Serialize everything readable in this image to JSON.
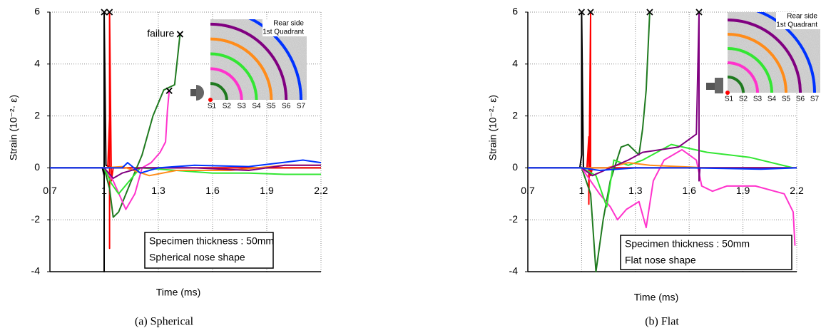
{
  "chart_data": [
    {
      "type": "line",
      "xlabel": "Time (ms)",
      "ylabel": "Strain (10⁻²· ε)",
      "caption": "(a) Spherical",
      "xlim": [
        0.7,
        2.2
      ],
      "xticks": [
        0.7,
        1,
        1.3,
        1.6,
        1.9,
        2.2
      ],
      "ylim": [
        -4,
        6
      ],
      "yticks": [
        -4,
        -2,
        0,
        2,
        4,
        6
      ],
      "grid": true,
      "inset_title": [
        "Rear side",
        "1st Quadrant"
      ],
      "note": [
        "Specimen thickness : 50mm",
        "Spherical nose shape"
      ],
      "annotation": "failure",
      "markers": [
        {
          "x": 1.0,
          "y": 6
        },
        {
          "x": 1.03,
          "y": 6
        },
        {
          "x": 1.42,
          "y": 5.15
        },
        {
          "x": 1.36,
          "y": 2.97
        }
      ],
      "series": [
        {
          "color": "#000000",
          "x": [
            0.7,
            0.99,
            1.0,
            1.0,
            1.0,
            1.01,
            1.05,
            2.2
          ],
          "values": [
            0,
            0,
            -0.3,
            -4,
            6,
            0.1,
            0,
            0
          ]
        },
        {
          "name": "S1",
          "color": "#ff0000",
          "x": [
            0.7,
            1.02,
            1.03,
            1.03,
            1.03,
            1.04,
            1.05,
            2.2
          ],
          "values": [
            0,
            0,
            1.9,
            -3.1,
            6,
            -0.5,
            0,
            0
          ]
        },
        {
          "name": "S2",
          "color": "#1f7a1f",
          "x": [
            0.7,
            1.0,
            1.03,
            1.05,
            1.08,
            1.15,
            1.21,
            1.27,
            1.33,
            1.39,
            1.41,
            1.42
          ],
          "values": [
            0,
            0,
            -0.8,
            -1.9,
            -1.7,
            -0.5,
            0.5,
            2.0,
            3.0,
            3.2,
            4.5,
            5.15
          ]
        },
        {
          "name": "S3",
          "color": "#ff33cc",
          "x": [
            0.7,
            1.0,
            1.05,
            1.12,
            1.17,
            1.21,
            1.26,
            1.31,
            1.34,
            1.35,
            1.36
          ],
          "values": [
            0,
            0,
            -0.5,
            -1.6,
            -1.0,
            0,
            0.2,
            0.6,
            1.0,
            2.2,
            2.97
          ]
        },
        {
          "name": "S4",
          "color": "#33e633",
          "x": [
            0.7,
            1.0,
            1.04,
            1.08,
            1.14,
            1.2,
            1.4,
            1.6,
            1.8,
            2.0,
            2.2
          ],
          "values": [
            0,
            0,
            -0.6,
            -1.0,
            -0.5,
            0,
            -0.1,
            -0.2,
            -0.2,
            -0.25,
            -0.25
          ]
        },
        {
          "name": "S5",
          "color": "#ff8c1a",
          "x": [
            0.7,
            1.0,
            1.1,
            1.25,
            1.4,
            1.7,
            2.0,
            2.2
          ],
          "values": [
            0,
            0,
            0.05,
            -0.3,
            -0.1,
            -0.1,
            0.1,
            0.1
          ]
        },
        {
          "name": "S6",
          "color": "#800080",
          "x": [
            0.7,
            1.0,
            1.05,
            1.1,
            1.2,
            1.5,
            1.8,
            2.0,
            2.2
          ],
          "values": [
            0,
            0,
            -0.4,
            -0.2,
            0,
            0,
            -0.1,
            0.1,
            0.1
          ]
        },
        {
          "name": "S7",
          "color": "#0033ff",
          "x": [
            0.7,
            1.0,
            1.1,
            1.13,
            1.2,
            1.3,
            1.5,
            1.8,
            2.1,
            2.2
          ],
          "values": [
            0,
            0,
            0,
            0.2,
            -0.2,
            0,
            0.1,
            0.05,
            0.3,
            0.2
          ]
        }
      ]
    },
    {
      "type": "line",
      "xlabel": "Time (ms)",
      "ylabel": "Strain (10⁻²· ε)",
      "caption": "(b) Flat",
      "xlim": [
        0.7,
        2.2
      ],
      "xticks": [
        0.7,
        1,
        1.3,
        1.6,
        1.9,
        2.2
      ],
      "ylim": [
        -4,
        6
      ],
      "yticks": [
        -4,
        -2,
        0,
        2,
        4,
        6
      ],
      "grid": true,
      "inset_title": [
        "Rear side",
        "1st Quadrant"
      ],
      "note": [
        "Specimen thickness : 50mm",
        "Flat nose shape"
      ],
      "markers": [
        {
          "x": 1.0,
          "y": 6
        },
        {
          "x": 1.05,
          "y": 6
        },
        {
          "x": 1.38,
          "y": 6
        },
        {
          "x": 1.655,
          "y": 6
        }
      ],
      "series": [
        {
          "color": "#000000",
          "x": [
            0.7,
            0.99,
            1.0,
            1.0,
            1.01,
            2.2
          ],
          "values": [
            0,
            0,
            0.5,
            6,
            0,
            0
          ]
        },
        {
          "name": "S1",
          "color": "#ff0000",
          "x": [
            0.7,
            1.03,
            1.04,
            1.04,
            1.05,
            1.05,
            1.06,
            2.2
          ],
          "values": [
            0,
            0,
            1.2,
            -1.4,
            6,
            -0.3,
            0,
            0
          ]
        },
        {
          "name": "S2",
          "color": "#1f7a1f",
          "x": [
            0.7,
            1.0,
            1.05,
            1.08,
            1.12,
            1.16,
            1.22,
            1.26,
            1.32,
            1.34,
            1.36,
            1.38
          ],
          "values": [
            0,
            0,
            -1,
            -4,
            -2,
            -0.5,
            0.8,
            0.9,
            0.5,
            1.5,
            3,
            6
          ]
        },
        {
          "name": "S3",
          "color": "#ff33cc",
          "x": [
            0.7,
            1.0,
            1.1,
            1.16,
            1.2,
            1.25,
            1.32,
            1.36,
            1.4,
            1.46,
            1.56,
            1.64,
            1.67,
            1.73,
            1.81,
            1.97,
            2.13,
            2.18,
            2.19
          ],
          "values": [
            0,
            0,
            -1,
            -1.5,
            -2,
            -1.6,
            -1.3,
            -2.3,
            -0.5,
            0.3,
            0.7,
            0.3,
            -0.7,
            -0.9,
            -0.7,
            -0.7,
            -1.0,
            -1.7,
            -3
          ]
        },
        {
          "name": "S4",
          "color": "#33e633",
          "x": [
            0.7,
            1.0,
            1.08,
            1.14,
            1.18,
            1.26,
            1.34,
            1.5,
            1.7,
            1.94,
            2.18
          ],
          "values": [
            0,
            0,
            -0.3,
            -1.5,
            0.3,
            0.1,
            0.3,
            0.9,
            0.6,
            0.4,
            0
          ]
        },
        {
          "name": "S5",
          "color": "#ff8c1a",
          "x": [
            0.7,
            1.0,
            1.14,
            1.26,
            1.38,
            1.7,
            2.18
          ],
          "values": [
            0,
            0,
            0,
            0.2,
            0.1,
            0,
            0
          ]
        },
        {
          "name": "S6",
          "color": "#800080",
          "x": [
            0.7,
            1.0,
            1.06,
            1.26,
            1.34,
            1.54,
            1.64,
            1.655,
            1.655,
            1.66,
            2.2
          ],
          "values": [
            0,
            0,
            -0.3,
            0.3,
            0.6,
            0.8,
            1.3,
            6,
            -0.5,
            0,
            0
          ]
        },
        {
          "name": "S7",
          "color": "#0033ff",
          "x": [
            0.7,
            1.0,
            1.1,
            1.3,
            1.6,
            2.0,
            2.2
          ],
          "values": [
            0,
            0,
            -0.1,
            0,
            0,
            -0.05,
            0
          ]
        }
      ]
    }
  ]
}
